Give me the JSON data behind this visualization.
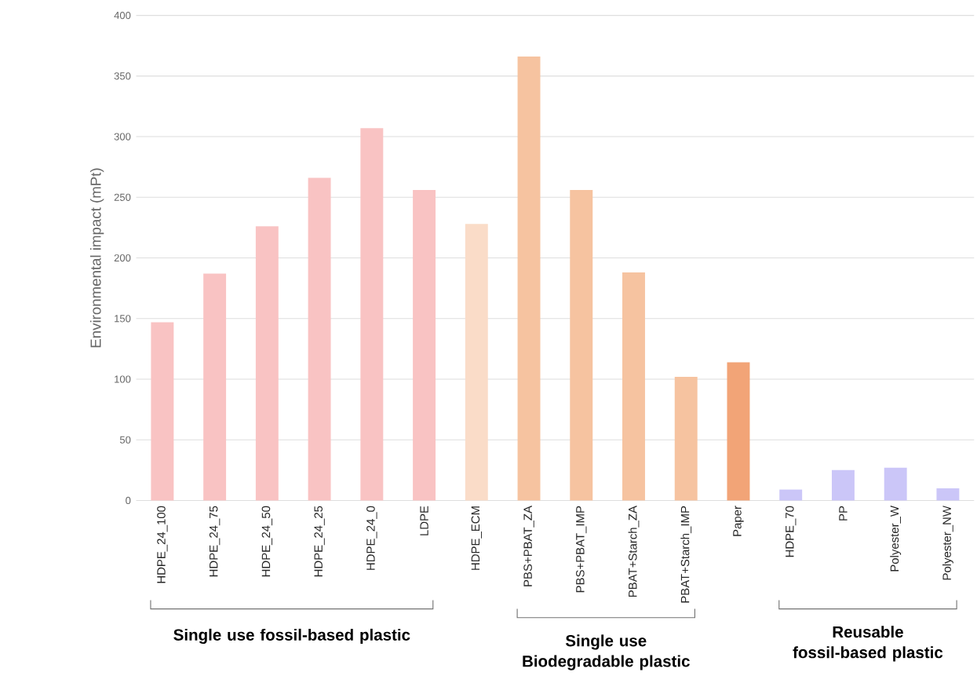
{
  "chart_data": {
    "type": "bar",
    "ylabel": "Environmental impact (mPt)",
    "categories": [
      "HDPE_24_100",
      "HDPE_24_75",
      "HDPE_24_50",
      "HDPE_24_25",
      "HDPE_24_0",
      "LDPE",
      "HDPE_ECM",
      "PBS+PBAT_ZA",
      "PBS+PBAT_IMP",
      "PBAT+Starch_ZA",
      "PBAT+Starch_IMP",
      "Paper",
      "HDPE_70",
      "PP",
      "Polyester_W",
      "Polyester_NW"
    ],
    "values": [
      147,
      187,
      226,
      266,
      307,
      256,
      228,
      366,
      256,
      188,
      102,
      114,
      9,
      25,
      27,
      10
    ],
    "colors": [
      "#f9c3c3",
      "#f9c3c3",
      "#f9c3c3",
      "#f9c3c3",
      "#f9c3c3",
      "#f9c3c3",
      "#fadcc8",
      "#f6c3a0",
      "#f6c3a0",
      "#f6c3a0",
      "#f6c3a0",
      "#f2a477",
      "#cbc6f8",
      "#cbc6f8",
      "#cbc6f8",
      "#cbc6f8"
    ],
    "ylim": [
      0,
      400
    ],
    "yticks": [
      0,
      50,
      100,
      150,
      200,
      250,
      300,
      350,
      400
    ],
    "grid": "y",
    "annotations": [
      "Single use fossil-based plastic",
      "Single use Biodegradable plastic",
      "Reusable fossil-based plastic"
    ]
  }
}
